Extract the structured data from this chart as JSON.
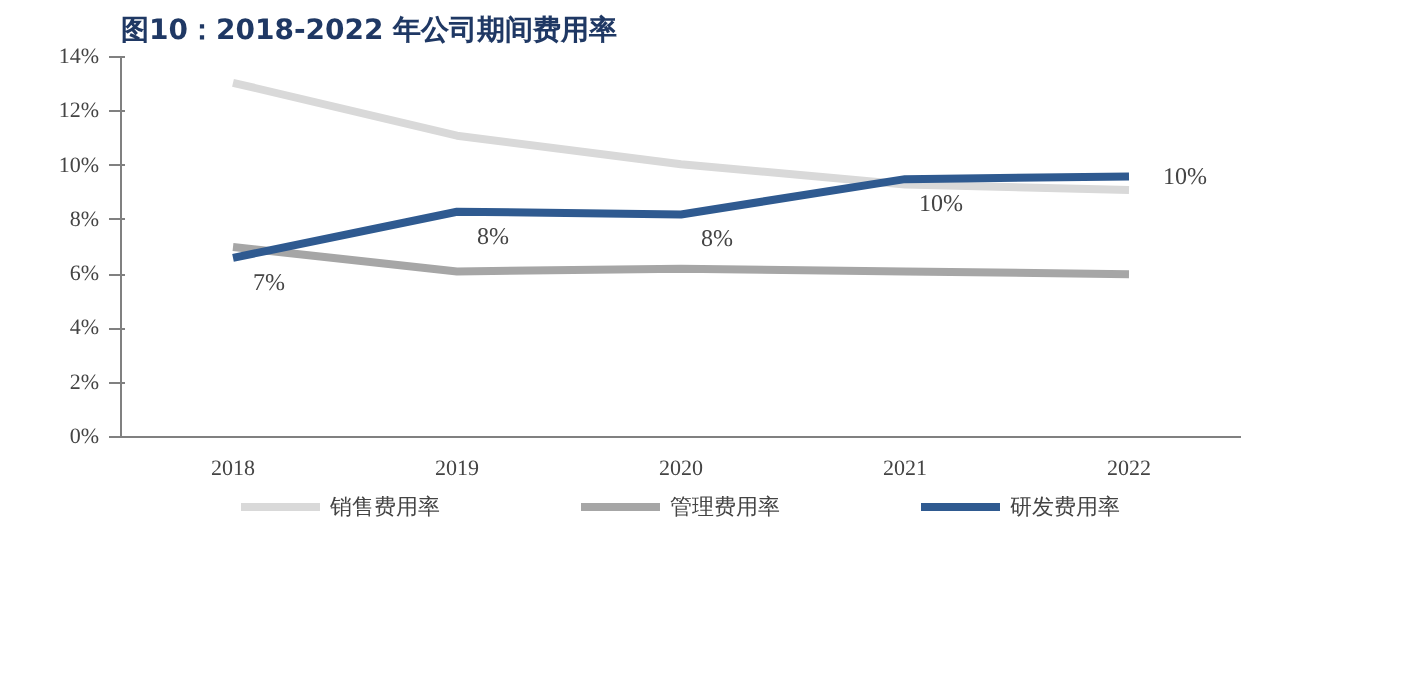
{
  "chart_data": {
    "type": "line",
    "title": "图10：2018-2022 年公司期间费用率",
    "categories": [
      "2018",
      "2019",
      "2020",
      "2021",
      "2022"
    ],
    "series": [
      {
        "name": "销售费用率",
        "color": "#d9d9d9",
        "values": [
          13.05,
          11.1,
          10.05,
          9.3,
          9.1
        ]
      },
      {
        "name": "管理费用率",
        "color": "#a6a6a6",
        "values": [
          7.0,
          6.1,
          6.2,
          6.1,
          6.0
        ]
      },
      {
        "name": "研发费用率",
        "color": "#2f5a90",
        "values": [
          6.6,
          8.3,
          8.2,
          9.5,
          9.6
        ],
        "value_labels": [
          "7%",
          "8%",
          "8%",
          "10%",
          "10%"
        ]
      }
    ],
    "ylim": [
      0,
      14
    ],
    "yticks": [
      {
        "value": 0,
        "label": "0%"
      },
      {
        "value": 2,
        "label": "2%"
      },
      {
        "value": 4,
        "label": "4%"
      },
      {
        "value": 6,
        "label": "6%"
      },
      {
        "value": 8,
        "label": "8%"
      },
      {
        "value": 10,
        "label": "10%"
      },
      {
        "value": 12,
        "label": "12%"
      },
      {
        "value": 14,
        "label": "14%"
      }
    ],
    "grid": false,
    "legend": "bottom",
    "marker": "none",
    "line_style": "solid"
  }
}
